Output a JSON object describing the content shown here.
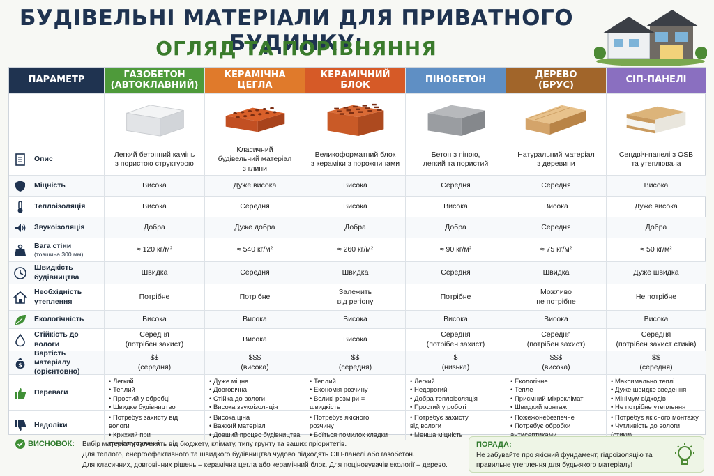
{
  "title_line1": "БУДІВЕЛЬНІ МАТЕРІАЛИ ДЛЯ ПРИВАТНОГО БУДИНКУ:",
  "title_line2": "ОГЛЯД ТА ПОРІВНЯННЯ",
  "header_param": "ПАРАМЕТР",
  "materials": [
    {
      "name": "ГАЗОБЕТОН\n(АВТОКЛАВНИЙ)",
      "color": "#4e9a3a",
      "icon": "aerated-block-icon"
    },
    {
      "name": "КЕРАМІЧНА\nЦЕГЛА",
      "color": "#e07a2b",
      "icon": "ceramic-brick-icon"
    },
    {
      "name": "КЕРАМІЧНИЙ\nБЛОК",
      "color": "#d65a27",
      "icon": "ceramic-block-icon"
    },
    {
      "name": "ПІНОБЕТОН",
      "color": "#5f8fc4",
      "icon": "foam-block-icon"
    },
    {
      "name": "ДЕРЕВО\n(БРУС)",
      "color": "#a1652a",
      "icon": "timber-beam-icon"
    },
    {
      "name": "СІП-ПАНЕЛІ",
      "color": "#8a6fc0",
      "icon": "sip-panel-icon"
    }
  ],
  "rows": [
    {
      "label": "Опис",
      "icon": "document-icon",
      "values": [
        "Легкий бетонний камінь\nз пористою структурою",
        "Класичний\nбудівельний матеріал\nз глини",
        "Великоформатний блок\nз кераміки з порожнинами",
        "Бетон з піною,\nлегкий та пористий",
        "Натуральний матеріал\nз деревини",
        "Сендвіч-панелі з OSB\nта утеплювача"
      ]
    },
    {
      "label": "Міцність",
      "icon": "shield-icon",
      "values": [
        "Висока",
        "Дуже висока",
        "Висока",
        "Середня",
        "Середня",
        "Висока"
      ]
    },
    {
      "label": "Теплоізоляція",
      "icon": "thermometer-icon",
      "values": [
        "Висока",
        "Середня",
        "Висока",
        "Висока",
        "Висока",
        "Дуже висока"
      ]
    },
    {
      "label": "Звукоізоляція",
      "icon": "speaker-icon",
      "values": [
        "Добра",
        "Дуже добра",
        "Добра",
        "Добра",
        "Середня",
        "Добра"
      ]
    },
    {
      "label": "Вага стіни",
      "sub": "(товщина 300 мм)",
      "icon": "weight-icon",
      "values": [
        "≈ 120 кг/м²",
        "≈ 540 кг/м²",
        "≈ 260 кг/м²",
        "≈ 90 кг/м²",
        "≈ 75 кг/м²",
        "≈ 50 кг/м²"
      ]
    },
    {
      "label": "Швидкість\nбудівництва",
      "icon": "clock-icon",
      "values": [
        "Швидка",
        "Середня",
        "Швидка",
        "Середня",
        "Швидка",
        "Дуже швидка"
      ]
    },
    {
      "label": "Необхідність\nутеплення",
      "icon": "home-icon",
      "values": [
        "Потрібне",
        "Потрібне",
        "Залежить\nвід регіону",
        "Потрібне",
        "Можливо\nне потрібне",
        "Не потрібне"
      ]
    },
    {
      "label": "Екологічність",
      "icon": "leaf-icon",
      "values": [
        "Висока",
        "Висока",
        "Висока",
        "Висока",
        "Висока",
        "Висока"
      ]
    },
    {
      "label": "Стійкість до вологи",
      "icon": "droplet-icon",
      "values": [
        "Середня\n(потрібен захист)",
        "Висока",
        "Висока",
        "Середня\n(потрібен захист)",
        "Середня\n(потрібен захист)",
        "Середня\n(потрібен захист стиків)"
      ]
    },
    {
      "label": "Вартість матеріалу\n(орієнтовно)",
      "icon": "money-bag-icon",
      "values": [
        "$$\n(середня)",
        "$$$\n(висока)",
        "$$\n(середня)",
        "$\n(низька)",
        "$$$\n(висока)",
        "$$\n(середня)"
      ]
    }
  ],
  "pros": {
    "label": "Переваги",
    "icon": "thumbs-up-icon",
    "lists": [
      [
        "Легкий",
        "Теплий",
        "Простий у обробці",
        "Швидке будівництво"
      ],
      [
        "Дуже міцна",
        "Довговічна",
        "Стійка до вологи",
        "Висока звукоізоляція"
      ],
      [
        "Теплий",
        "Економія розчину",
        "Великі розміри =\nшвидкість"
      ],
      [
        "Легкий",
        "Недорогий",
        "Добра теплоізоляція",
        "Простий у роботі"
      ],
      [
        "Екологічне",
        "Тепле",
        "Приємний мікроклімат",
        "Швидкий монтаж"
      ],
      [
        "Максимально теплі",
        "Дуже швидке зведення",
        "Мінімум відходів",
        "Не потрібне утеплення"
      ]
    ]
  },
  "cons": {
    "label": "Недоліки",
    "icon": "thumbs-down-icon",
    "lists": [
      [
        "Потребує захисту від вологи",
        "Крихкий при транспортуванні"
      ],
      [
        "Висока ціна",
        "Важкий матеріал",
        "Довший процес будівництва"
      ],
      [
        "Потребує якісного\nрозчину",
        "Боїться помилок кладки"
      ],
      [
        "Потребує захисту\nвід вологи",
        "Менша міцність"
      ],
      [
        "Пожежонебезпечне",
        "Потребує обробки\nантисептиками"
      ],
      [
        "Потребує якісного монтажу",
        "Чутливість до вологи\n(стики)"
      ]
    ]
  },
  "conclusion": {
    "label": "ВИСНОВОК:",
    "text": "Вибір матеріалу залежить від бюджету, клімату, типу грунту та ваших пріоритетів.\nДля теплого, енергоефективного та швидкого будівництва чудово підходять СІП-панелі або газобетон.\nДля класичних, довговічних рішень – керамічна цегла або керамічний блок. Для поціновувачів екології – дерево."
  },
  "tip": {
    "label": "ПОРАДА:",
    "text": "Не забувайте про якісний фундамент, гідроізоляцію та правильне утеплення для будь-якого матеріалу!"
  },
  "colors": {
    "header_param": "#1f3350",
    "accent_green": "#2f7a2c"
  }
}
